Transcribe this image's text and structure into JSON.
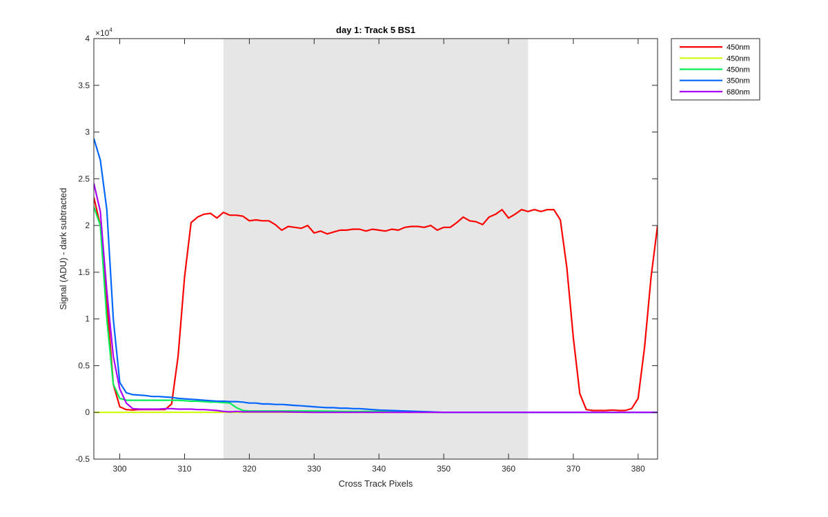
{
  "chart_data": {
    "type": "line",
    "title": "day 1: Track 5  BS1",
    "xlabel": "Cross Track Pixels",
    "ylabel": "Signal (ADU) - dark subtracted",
    "y_exponent_label": "×10",
    "y_exponent_power": "4",
    "xlim": [
      296,
      383
    ],
    "ylim": [
      -5000,
      40000
    ],
    "x_ticks": [
      300,
      310,
      320,
      330,
      340,
      350,
      360,
      370,
      380
    ],
    "x_tick_labels": [
      "300",
      "310",
      "320",
      "330",
      "340",
      "350",
      "360",
      "370",
      "380"
    ],
    "y_ticks": [
      -5000,
      0,
      5000,
      10000,
      15000,
      20000,
      25000,
      30000,
      35000,
      40000
    ],
    "y_tick_labels": [
      "-0.5",
      "0",
      "0.5",
      "1",
      "1.5",
      "2",
      "2.5",
      "3",
      "3.5",
      "4"
    ],
    "grid": false,
    "legend_position": "outside-top-right",
    "shaded_region": {
      "x_start": 316,
      "x_end": 363,
      "color": "#e6e6e6"
    },
    "series": [
      {
        "name": "450nm",
        "color": "#ff0000",
        "x": [
          296,
          297,
          298,
          299,
          300,
          301,
          302,
          303,
          304,
          305,
          306,
          307,
          308,
          309,
          310,
          311,
          312,
          313,
          314,
          315,
          316,
          317,
          318,
          319,
          320,
          321,
          322,
          323,
          324,
          325,
          326,
          327,
          328,
          329,
          330,
          331,
          332,
          333,
          334,
          335,
          336,
          337,
          338,
          339,
          340,
          341,
          342,
          343,
          344,
          345,
          346,
          347,
          348,
          349,
          350,
          351,
          352,
          353,
          354,
          355,
          356,
          357,
          358,
          359,
          360,
          361,
          362,
          363,
          364,
          365,
          366,
          367,
          368,
          369,
          370,
          371,
          372,
          373,
          374,
          375,
          376,
          377,
          378,
          379,
          380,
          381,
          382,
          383
        ],
        "y": [
          23000,
          20000,
          12000,
          3000,
          600,
          300,
          250,
          300,
          300,
          300,
          300,
          300,
          900,
          6000,
          14500,
          20300,
          20900,
          21200,
          21300,
          20800,
          21400,
          21100,
          21100,
          21000,
          20500,
          20600,
          20500,
          20500,
          20100,
          19500,
          19900,
          19800,
          19700,
          20000,
          19200,
          19400,
          19100,
          19300,
          19500,
          19500,
          19600,
          19600,
          19400,
          19600,
          19500,
          19400,
          19600,
          19500,
          19800,
          19900,
          19900,
          19800,
          20000,
          19500,
          19800,
          19800,
          20300,
          20900,
          20500,
          20400,
          20100,
          20900,
          21200,
          21700,
          20800,
          21200,
          21700,
          21500,
          21700,
          21500,
          21700,
          21700,
          20600,
          15500,
          8000,
          2000,
          300,
          200,
          200,
          200,
          250,
          200,
          200,
          400,
          1500,
          7000,
          14500,
          20000
        ]
      },
      {
        "name": "450nm",
        "color": "#ccff00",
        "x": [
          296,
          300,
          310,
          320,
          330,
          340,
          350,
          360,
          370,
          380,
          383
        ],
        "y": [
          0,
          0,
          0,
          0,
          0,
          0,
          0,
          0,
          0,
          0,
          0
        ]
      },
      {
        "name": "450nm",
        "color": "#00ee55",
        "x": [
          296,
          297,
          298,
          299,
          300,
          301,
          302,
          303,
          304,
          305,
          306,
          307,
          308,
          309,
          310,
          311,
          312,
          313,
          314,
          315,
          316,
          317,
          318,
          319,
          320,
          322,
          325,
          330,
          335,
          340,
          345,
          350,
          360,
          370,
          380,
          383
        ],
        "y": [
          22000,
          20000,
          10000,
          3000,
          1500,
          1300,
          1300,
          1300,
          1300,
          1300,
          1300,
          1300,
          1300,
          1300,
          1250,
          1200,
          1200,
          1150,
          1100,
          1100,
          1050,
          1000,
          500,
          200,
          150,
          150,
          150,
          150,
          100,
          100,
          50,
          0,
          0,
          0,
          0,
          0
        ]
      },
      {
        "name": "350nm",
        "color": "#0066ff",
        "x": [
          296,
          297,
          298,
          299,
          300,
          301,
          302,
          303,
          304,
          305,
          306,
          307,
          308,
          309,
          310,
          311,
          312,
          313,
          314,
          315,
          316,
          317,
          318,
          319,
          320,
          321,
          322,
          323,
          324,
          325,
          326,
          327,
          328,
          329,
          330,
          331,
          332,
          333,
          334,
          335,
          336,
          337,
          338,
          339,
          340,
          342,
          344,
          346,
          348,
          350,
          355,
          360,
          370,
          380,
          383
        ],
        "y": [
          29300,
          27000,
          21700,
          10000,
          3200,
          2100,
          1900,
          1850,
          1800,
          1700,
          1700,
          1650,
          1600,
          1500,
          1450,
          1400,
          1350,
          1300,
          1250,
          1200,
          1200,
          1150,
          1150,
          1100,
          1000,
          1000,
          900,
          900,
          850,
          850,
          800,
          750,
          700,
          650,
          600,
          550,
          500,
          500,
          450,
          450,
          400,
          400,
          350,
          300,
          250,
          200,
          150,
          100,
          50,
          0,
          0,
          0,
          0,
          0,
          0
        ]
      },
      {
        "name": "680nm",
        "color": "#aa00ff",
        "x": [
          296,
          297,
          298,
          299,
          300,
          301,
          302,
          303,
          304,
          305,
          306,
          307,
          308,
          309,
          310,
          311,
          312,
          313,
          314,
          315,
          316,
          317,
          318,
          319,
          320,
          325,
          330,
          340,
          350,
          360,
          370,
          380,
          383
        ],
        "y": [
          24500,
          21500,
          13000,
          6000,
          2500,
          1000,
          400,
          350,
          350,
          350,
          350,
          400,
          400,
          350,
          350,
          350,
          300,
          300,
          250,
          200,
          100,
          50,
          100,
          50,
          50,
          50,
          0,
          0,
          0,
          0,
          0,
          0,
          0
        ]
      }
    ]
  }
}
